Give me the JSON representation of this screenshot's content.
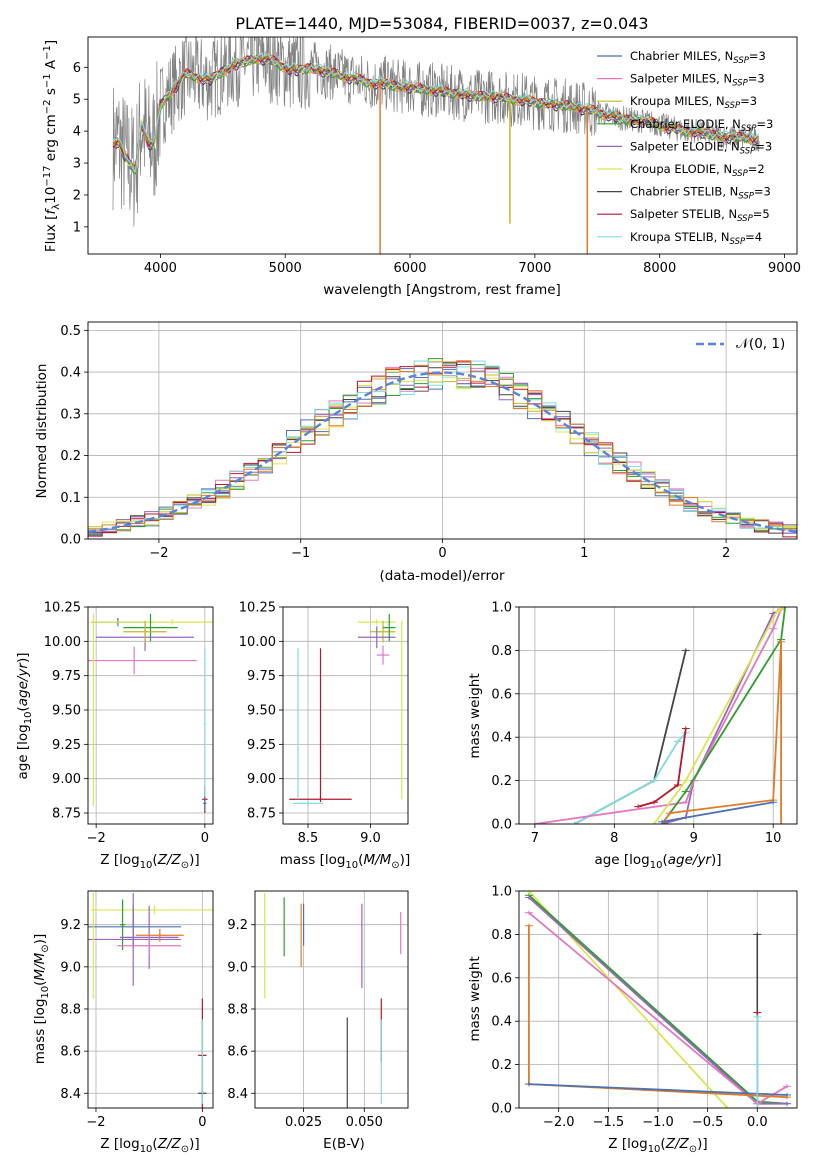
{
  "colors": {
    "miles_chabrier": "#4c72b0",
    "miles_salpeter": "#e377c2",
    "miles_kroupa": "#bcbd22",
    "elodie_chabrier": "#2ca02c",
    "elodie_salpeter": "#9467bd",
    "elodie_kroupa": "#dbe54d",
    "stelib_chabrier": "#444444",
    "stelib_salpeter": "#b2182b",
    "stelib_kroupa": "#7fdbe0",
    "data": "#808080",
    "orange": "#e07b2a",
    "gauss": "#5b84d6"
  },
  "legend_entries": [
    {
      "pre": "Chabrier MILES, N",
      "sub": "SSP",
      "post": "=3",
      "color": "#4c72b0"
    },
    {
      "pre": "Salpeter MILES, N",
      "sub": "SSP",
      "post": "=3",
      "color": "#e377c2"
    },
    {
      "pre": "Kroupa MILES, N",
      "sub": "SSP",
      "post": "=3",
      "color": "#bcbd22"
    },
    {
      "pre": "Chabrier ELODIE, N",
      "sub": "SSP",
      "post": "=3",
      "color": "#2ca02c"
    },
    {
      "pre": "Salpeter ELODIE, N",
      "sub": "SSP",
      "post": "=3",
      "color": "#9467bd"
    },
    {
      "pre": "Kroupa ELODIE, N",
      "sub": "SSP",
      "post": "=2",
      "color": "#dbe54d"
    },
    {
      "pre": "Chabrier STELIB, N",
      "sub": "SSP",
      "post": "=3",
      "color": "#444444"
    },
    {
      "pre": "Salpeter STELIB, N",
      "sub": "SSP",
      "post": "=5",
      "color": "#b2182b"
    },
    {
      "pre": "Kroupa STELIB, N",
      "sub": "SSP",
      "post": "=4",
      "color": "#7fdbe0"
    }
  ],
  "chart_data": [
    {
      "type": "line",
      "panel": "spectrum",
      "title": "PLATE=1440, MJD=53084, FIBERID=0037, z=0.043",
      "xlabel": "wavelength [Angstrom, rest frame]",
      "ylabel": "Flux [f_λ 10^-17 erg cm^-2 s^-1 A^-1]",
      "xlim": [
        3420,
        9100
      ],
      "ylim": [
        0.15,
        6.95
      ],
      "xticks": [
        4000,
        5000,
        6000,
        7000,
        8000,
        9000
      ],
      "yticks": [
        1,
        2,
        3,
        4,
        5,
        6
      ],
      "model_curve": {
        "x": [
          3620,
          3660,
          3700,
          3750,
          3800,
          3850,
          3900,
          3950,
          4000,
          4100,
          4200,
          4300,
          4400,
          4500,
          4600,
          4700,
          4800,
          4900,
          5000,
          5100,
          5200,
          5300,
          5400,
          5500,
          5600,
          5700,
          5800,
          5900,
          6000,
          6100,
          6200,
          6300,
          6400,
          6500,
          6600,
          6700,
          6800,
          6900,
          7000,
          7100,
          7200,
          7300,
          7400,
          7500,
          7600,
          7700,
          7800,
          7900,
          8000,
          8100,
          8200,
          8300,
          8400,
          8500,
          8600,
          8700,
          8800
        ],
        "y": [
          3.6,
          3.7,
          3.3,
          3.0,
          2.8,
          4.3,
          3.6,
          3.6,
          4.8,
          5.3,
          5.8,
          5.7,
          5.6,
          5.9,
          6.1,
          6.2,
          6.3,
          6.2,
          6.0,
          5.9,
          6.0,
          5.9,
          5.8,
          5.7,
          5.6,
          5.5,
          5.5,
          5.4,
          5.4,
          5.3,
          5.3,
          5.2,
          5.2,
          5.1,
          5.1,
          5.1,
          5.0,
          5.0,
          4.9,
          4.9,
          4.8,
          4.8,
          4.7,
          4.6,
          4.5,
          4.4,
          4.35,
          4.3,
          4.2,
          4.1,
          4.0,
          4.0,
          3.9,
          3.85,
          3.8,
          3.8,
          3.75
        ]
      },
      "emission_spikes": [
        {
          "x": 5760,
          "bottom": 0.15,
          "color": "orange"
        },
        {
          "x": 6800,
          "bottom": 1.1,
          "color": "olive"
        },
        {
          "x": 7420,
          "bottom": 0.15,
          "color": "orange"
        }
      ],
      "legend_position": "right"
    },
    {
      "type": "area",
      "panel": "residuals",
      "xlabel": "(data-model)/error",
      "ylabel": "Normed distribution",
      "xlim": [
        -2.5,
        2.5
      ],
      "ylim": [
        0,
        0.52
      ],
      "xticks": [
        -2,
        -1,
        0,
        1,
        2
      ],
      "yticks": [
        0.0,
        0.1,
        0.2,
        0.3,
        0.4,
        0.5
      ],
      "gaussian_label": "𝒩(0, 1)",
      "bins": 50,
      "grid": true
    },
    {
      "type": "scatter",
      "panel": "age_vs_Z",
      "xlabel": "Z [log10(Z/Z⊙)]",
      "ylabel": "age [log10(age/yr)]",
      "xlim": [
        -2.15,
        0.15
      ],
      "ylim": [
        8.67,
        10.25
      ],
      "xticks": [
        -2,
        0
      ],
      "yticks": [
        8.75,
        9.0,
        9.25,
        9.5,
        9.75,
        10.0,
        10.25
      ]
    },
    {
      "type": "scatter",
      "panel": "age_vs_mass",
      "xlabel": "mass [log10(M/M⊙)]",
      "xlim": [
        8.3,
        9.3
      ],
      "ylim": [
        8.67,
        10.25
      ],
      "xticks": [
        8.5,
        9.0
      ],
      "yticks": [
        8.75,
        9.0,
        9.25,
        9.5,
        9.75,
        10.0,
        10.25
      ]
    },
    {
      "type": "line",
      "panel": "cumulative_mass_weight_age",
      "xlabel": "age [log10(age/yr)]",
      "ylabel": "mass weight",
      "xlim": [
        6.8,
        10.3
      ],
      "ylim": [
        0,
        1.0
      ],
      "xticks": [
        7,
        8,
        9,
        10
      ],
      "yticks": [
        0.0,
        0.2,
        0.4,
        0.6,
        0.8,
        1.0
      ]
    },
    {
      "type": "scatter",
      "panel": "mass_vs_Z",
      "xlabel": "Z [log10(Z/Z⊙)]",
      "ylabel": "mass [log10(M/M⊙)]",
      "xlim": [
        -2.15,
        0.2
      ],
      "ylim": [
        8.33,
        9.36
      ],
      "xticks": [
        -2,
        0
      ],
      "yticks": [
        8.4,
        8.6,
        8.8,
        9.0,
        9.2
      ]
    },
    {
      "type": "scatter",
      "panel": "mass_vs_EBV",
      "xlabel": "E(B-V)",
      "xlim": [
        0.005,
        0.068
      ],
      "ylim": [
        8.33,
        9.36
      ],
      "xticks": [
        0.025,
        0.05
      ],
      "yticks": [
        8.4,
        8.6,
        8.8,
        9.0,
        9.2
      ]
    },
    {
      "type": "line",
      "panel": "cumulative_mass_weight_Z",
      "xlabel": "Z [log10(Z/Z⊙)]",
      "ylabel": "mass weight",
      "xlim": [
        -2.4,
        0.4
      ],
      "ylim": [
        0,
        1.0
      ],
      "xticks": [
        -2.0,
        -1.5,
        -1.0,
        -0.5,
        0.0
      ],
      "yticks": [
        0.0,
        0.2,
        0.4,
        0.6,
        0.8,
        1.0
      ]
    }
  ],
  "labels": {
    "title": "PLATE=1440, MJD=53084, FIBERID=0037, z=0.043",
    "spec_xlabel": "wavelength [Angstrom, rest frame]",
    "hist_xlabel": "(data-model)/error",
    "hist_ylabel": "Normed distribution",
    "ebv_xlabel": "E(B-V)",
    "mw_ylabel": "mass weight",
    "gauss_label": "𝒩(0, 1)"
  }
}
